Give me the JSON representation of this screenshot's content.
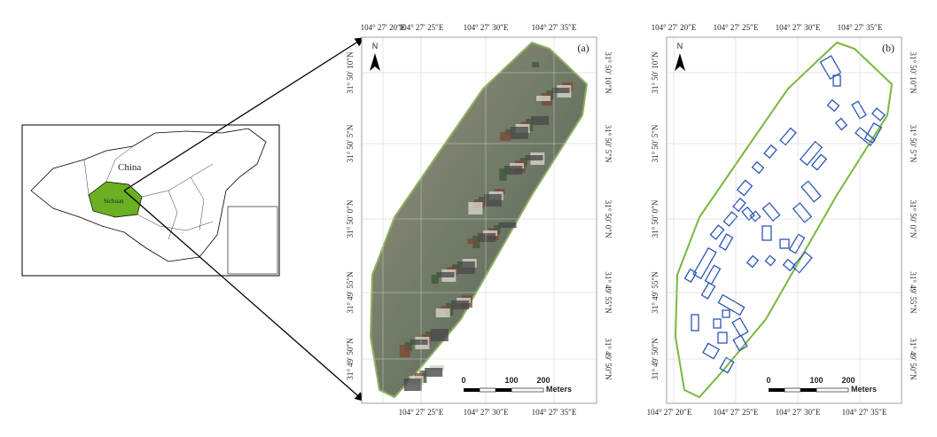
{
  "inset": {
    "country_label": "China",
    "province_label": "Sichuan"
  },
  "panels": [
    {
      "label": "(a)",
      "north": "N",
      "top_ticks": [
        "104° 27′ 20″E",
        "104° 27′ 25″E",
        "104° 27′ 30″E",
        "104° 27′ 35″E"
      ],
      "bottom_ticks": [
        "104° 27′ 25″E",
        "104° 27′ 30″E",
        "104° 27′ 35″E"
      ],
      "lat_ticks": [
        "31° 50′ 10″N",
        "31° 50′ 5″N",
        "31° 50′ 0″N",
        "31° 49′ 55″N",
        "31° 49′ 50″N"
      ],
      "scale": {
        "labels": [
          "0",
          "100",
          "200"
        ],
        "unit": "Meters"
      }
    },
    {
      "label": "(b)",
      "north": "N",
      "top_ticks": [
        "104° 27′ 20″E",
        "104° 27′ 25″E",
        "104° 27′ 30″E",
        "104° 27′ 35″E"
      ],
      "bottom_ticks": [
        "104° 27′ 20″E",
        "104° 27′ 25″E",
        "104° 27′ 30″E",
        "104° 27′ 35″E"
      ],
      "lat_ticks": [
        "31° 50′ 10″N",
        "31° 50′ 5″N",
        "31° 50′ 0″N",
        "31° 49′ 55″N",
        "31° 49′ 50″N"
      ],
      "scale": {
        "labels": [
          "0",
          "100",
          "200"
        ],
        "unit": "Meters"
      }
    }
  ]
}
